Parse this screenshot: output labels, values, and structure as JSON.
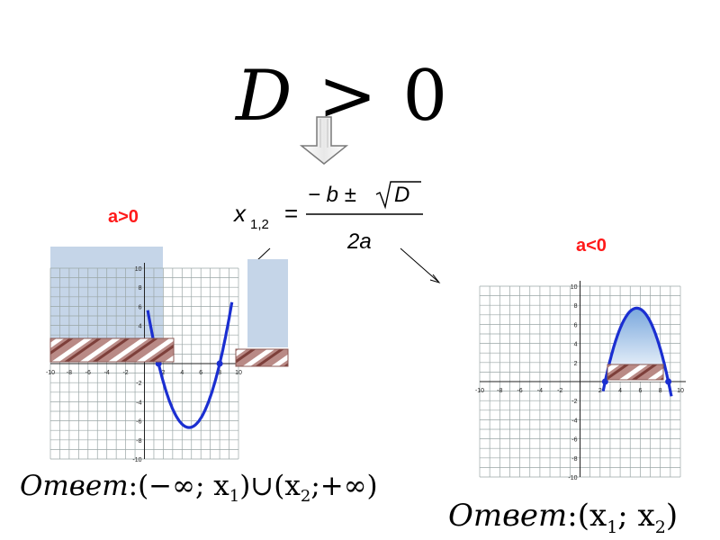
{
  "condition": {
    "lhs": "D",
    "op": ">",
    "rhs": "0"
  },
  "formula": {
    "lhs_var": "x",
    "lhs_sub": "1,2",
    "equals": "=",
    "numerator_b": "− b ±",
    "numerator_D": "D",
    "denominator": "2a"
  },
  "left_case": {
    "label": "a>0",
    "answer": {
      "prefix": "Ответ",
      "colon": ":",
      "interval": "(−∞; x",
      "sub1": "1",
      "union": ")∪(x",
      "sub2": "2",
      "tail": ";+∞)"
    }
  },
  "right_case": {
    "label": "a<0",
    "answer": {
      "prefix": "Ответ",
      "colon": ":",
      "interval": "(x",
      "sub1": "1",
      "sep": "; x",
      "sub2": "2",
      "tail": ")"
    }
  },
  "chart_data": [
    {
      "type": "line",
      "case": "a>0",
      "x_ticks": [
        "-10",
        "-8",
        "-6",
        "-4",
        "-2",
        "2",
        "4",
        "6",
        "8",
        "10"
      ],
      "y_ticks": [
        "10",
        "8",
        "6",
        "4",
        "2",
        "-2",
        "-4",
        "-6",
        "-8",
        "-10"
      ],
      "xlim": [
        -10,
        10
      ],
      "ylim": [
        -10,
        10
      ],
      "roots": [
        1.5,
        8.0
      ],
      "vertex": [
        4.75,
        -6.7
      ],
      "grid": true
    },
    {
      "type": "line",
      "case": "a<0",
      "x_ticks": [
        "-10",
        "-8",
        "-6",
        "-4",
        "-2",
        "2",
        "4",
        "6",
        "8",
        "10"
      ],
      "y_ticks": [
        "10",
        "8",
        "6",
        "4",
        "2",
        "-2",
        "-4",
        "-6",
        "-8",
        "-10"
      ],
      "xlim": [
        -10,
        10
      ],
      "ylim": [
        -10,
        10
      ],
      "roots": [
        2.5,
        8.8
      ],
      "vertex": [
        5.65,
        7.7
      ],
      "grid": true
    }
  ]
}
